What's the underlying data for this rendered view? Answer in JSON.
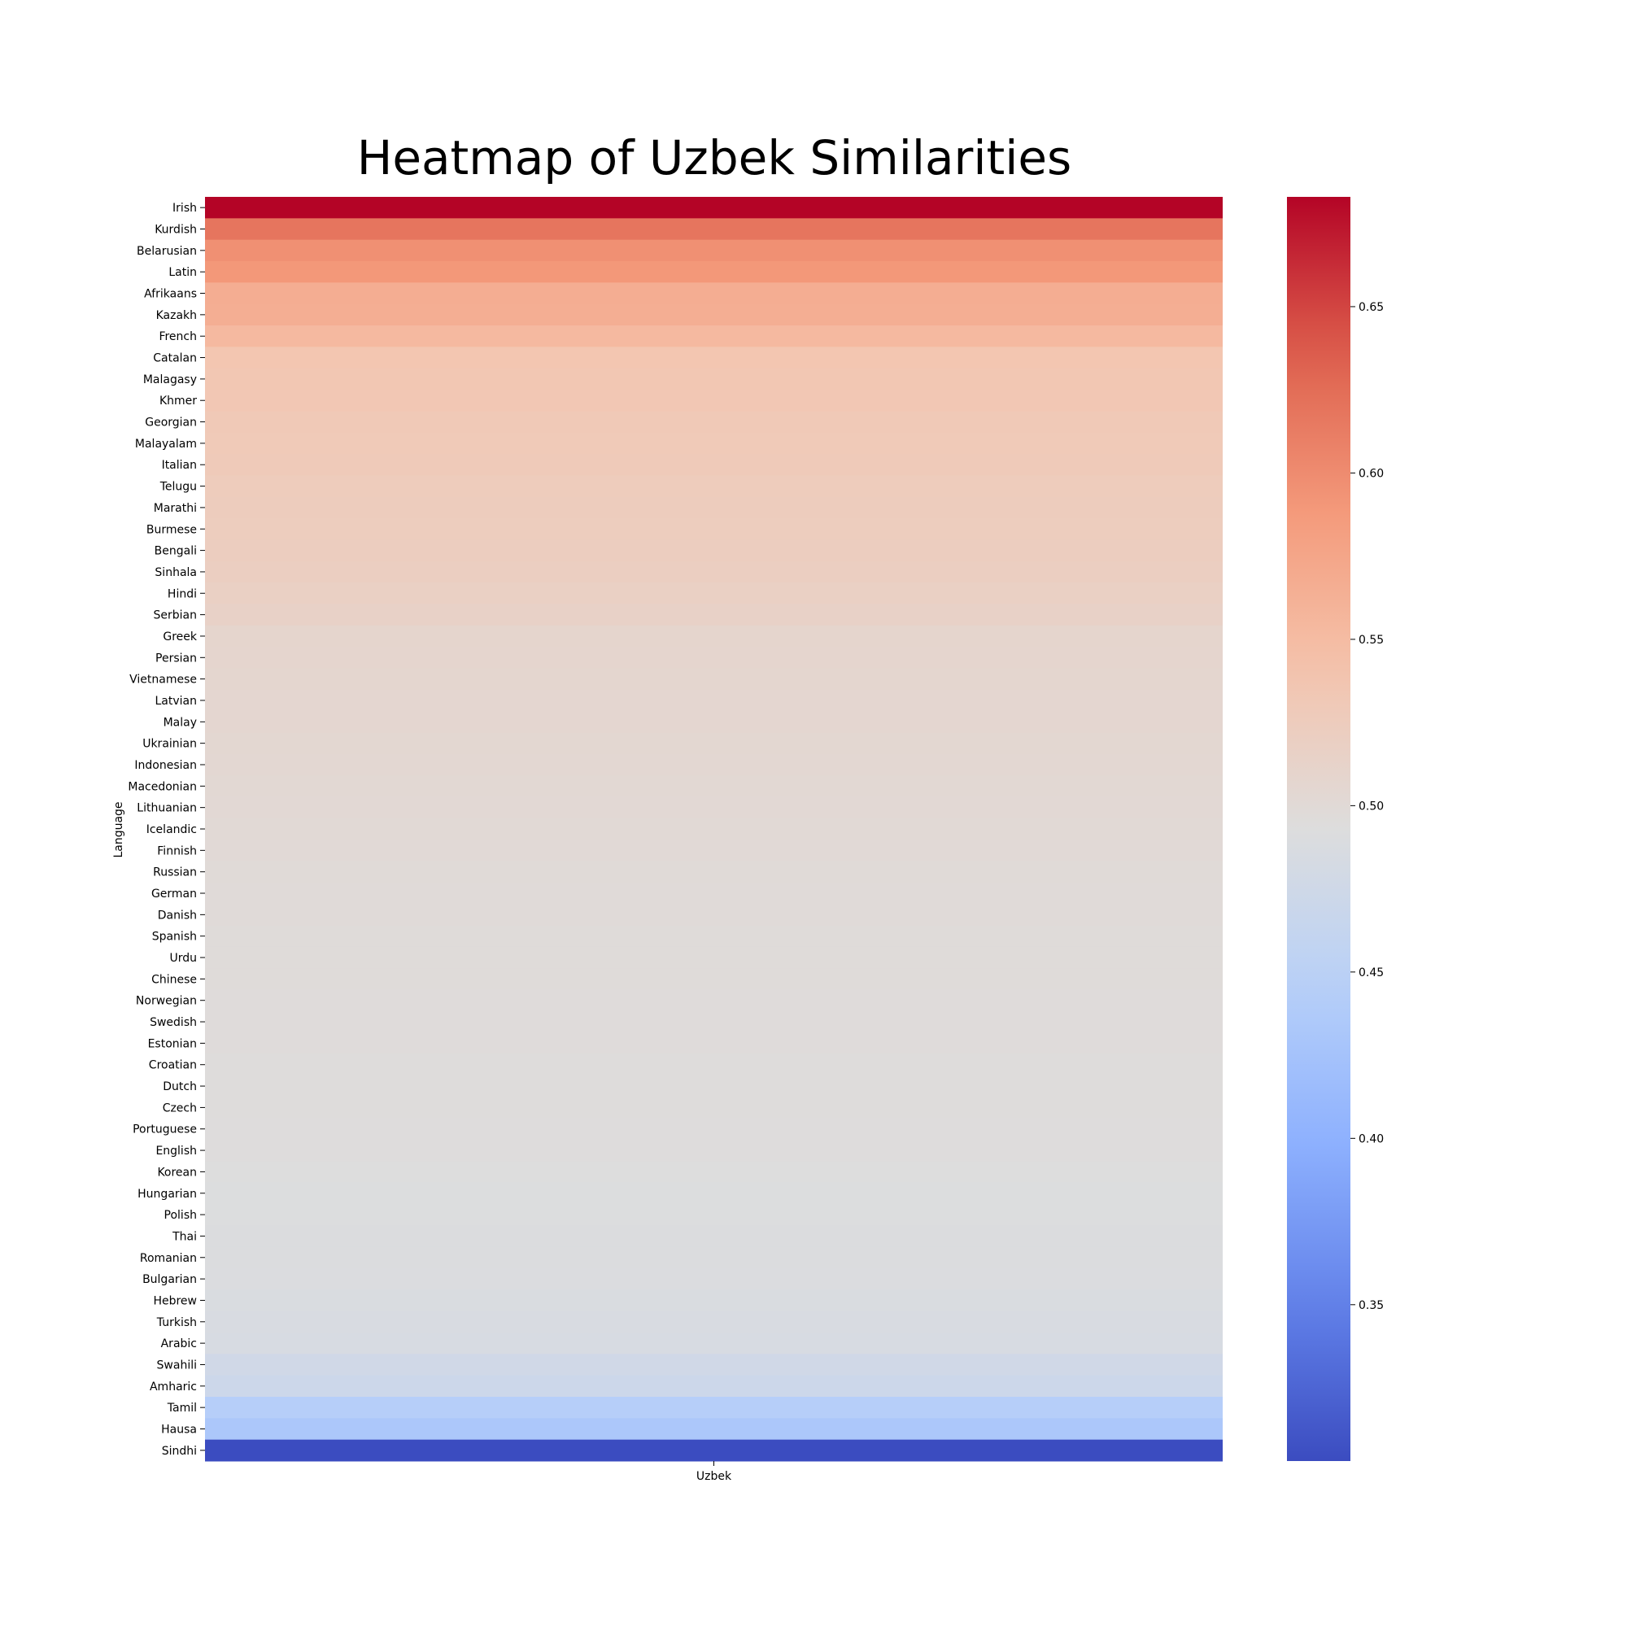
{
  "chart_data": {
    "type": "heatmap",
    "title": "Heatmap of Uzbek Similarities",
    "xlabel": "",
    "ylabel": "Language",
    "columns": [
      "Uzbek"
    ],
    "rows": [
      "Irish",
      "Kurdish",
      "Belarusian",
      "Latin",
      "Afrikaans",
      "Kazakh",
      "French",
      "Catalan",
      "Malagasy",
      "Khmer",
      "Georgian",
      "Malayalam",
      "Italian",
      "Telugu",
      "Marathi",
      "Burmese",
      "Bengali",
      "Sinhala",
      "Hindi",
      "Serbian",
      "Greek",
      "Persian",
      "Vietnamese",
      "Latvian",
      "Malay",
      "Ukrainian",
      "Indonesian",
      "Macedonian",
      "Lithuanian",
      "Icelandic",
      "Finnish",
      "Russian",
      "German",
      "Danish",
      "Spanish",
      "Urdu",
      "Chinese",
      "Norwegian",
      "Swedish",
      "Estonian",
      "Croatian",
      "Dutch",
      "Czech",
      "Portuguese",
      "English",
      "Korean",
      "Hungarian",
      "Polish",
      "Thai",
      "Romanian",
      "Bulgarian",
      "Hebrew",
      "Turkish",
      "Arabic",
      "Swahili",
      "Amharic",
      "Tamil",
      "Hausa",
      "Sindhi"
    ],
    "values": [
      0.683,
      0.618,
      0.596,
      0.59,
      0.566,
      0.565,
      0.553,
      0.537,
      0.535,
      0.534,
      0.531,
      0.53,
      0.529,
      0.526,
      0.525,
      0.524,
      0.523,
      0.521,
      0.518,
      0.515,
      0.509,
      0.508,
      0.507,
      0.506,
      0.506,
      0.505,
      0.504,
      0.503,
      0.502,
      0.501,
      0.5,
      0.499,
      0.498,
      0.498,
      0.497,
      0.497,
      0.497,
      0.496,
      0.496,
      0.496,
      0.495,
      0.495,
      0.495,
      0.494,
      0.494,
      0.493,
      0.492,
      0.492,
      0.491,
      0.491,
      0.49,
      0.488,
      0.487,
      0.485,
      0.476,
      0.471,
      0.443,
      0.432,
      0.303
    ],
    "colorbar": {
      "range": [
        0.303,
        0.683
      ],
      "ticks": [
        "0.35",
        "0.40",
        "0.45",
        "0.50",
        "0.55",
        "0.60",
        "0.65"
      ],
      "colormap": "coolwarm"
    }
  }
}
